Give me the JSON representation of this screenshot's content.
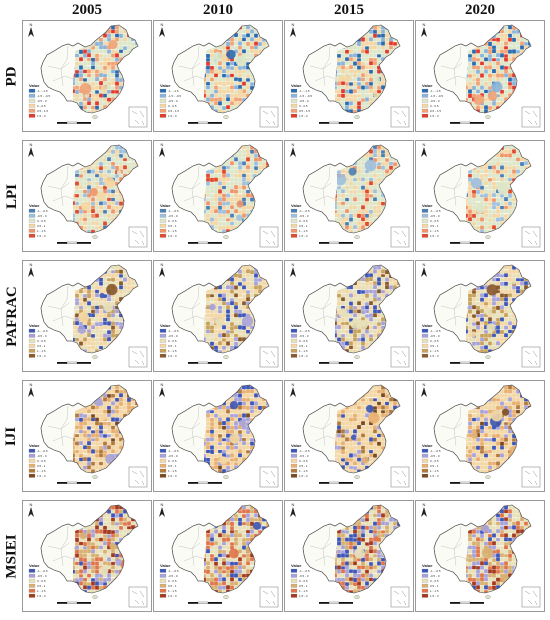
{
  "columns": [
    "2005",
    "2010",
    "2015",
    "2020"
  ],
  "rows": [
    {
      "label": "PD",
      "legend_title": "Value",
      "legend_classes": [
        {
          "text": "-1 - -1.5",
          "color": "#2b6cb0"
        },
        {
          "text": "-1.5 - -0.5",
          "color": "#8cb4d8"
        },
        {
          "text": "-0.5 - 0",
          "color": "#dde6c8"
        },
        {
          "text": "0 - 0.5",
          "color": "#f3d7a4"
        },
        {
          "text": "0.5 - 1.5",
          "color": "#f2a275"
        },
        {
          "text": "1.5 - 3",
          "color": "#e23b2e"
        }
      ],
      "years": [
        {
          "year": "2005",
          "class_levels": [
            0.05,
            0.15,
            0.35,
            0.2,
            0.15,
            0.1
          ]
        },
        {
          "year": "2010",
          "class_levels": [
            0.1,
            0.15,
            0.35,
            0.2,
            0.15,
            0.05
          ]
        },
        {
          "year": "2015",
          "class_levels": [
            0.08,
            0.12,
            0.38,
            0.2,
            0.12,
            0.1
          ]
        },
        {
          "year": "2020",
          "class_levels": [
            0.08,
            0.15,
            0.37,
            0.2,
            0.12,
            0.08
          ]
        }
      ]
    },
    {
      "label": "LPI",
      "legend_title": "Value",
      "legend_classes": [
        {
          "text": "-1 - -0.5",
          "color": "#4a7fb5"
        },
        {
          "text": "-0.5 - 0",
          "color": "#9fc0dd"
        },
        {
          "text": "0 - 0.5",
          "color": "#dde6c8"
        },
        {
          "text": "0.5 - 1",
          "color": "#f3d7a4"
        },
        {
          "text": "1 - 1.5",
          "color": "#f0946a"
        },
        {
          "text": "1.5 - 3",
          "color": "#e04a2e"
        }
      ],
      "years": [
        {
          "year": "2005",
          "class_levels": [
            0.05,
            0.1,
            0.45,
            0.25,
            0.1,
            0.05
          ]
        },
        {
          "year": "2010",
          "class_levels": [
            0.08,
            0.12,
            0.42,
            0.23,
            0.1,
            0.05
          ]
        },
        {
          "year": "2015",
          "class_levels": [
            0.05,
            0.1,
            0.45,
            0.25,
            0.1,
            0.05
          ]
        },
        {
          "year": "2020",
          "class_levels": [
            0.05,
            0.1,
            0.43,
            0.25,
            0.1,
            0.07
          ]
        }
      ]
    },
    {
      "label": "PAFRAC",
      "legend_title": "Value",
      "legend_classes": [
        {
          "text": "-1 - -0.5",
          "color": "#3d56b8"
        },
        {
          "text": "-0.5 - 0",
          "color": "#a7a3d8"
        },
        {
          "text": "0 - 0.5",
          "color": "#e7e0b8"
        },
        {
          "text": "0.5 - 1",
          "color": "#f3d7a4"
        },
        {
          "text": "1 - 1.5",
          "color": "#c7a25c"
        },
        {
          "text": "1.5 - 3",
          "color": "#8a5a2b"
        }
      ],
      "years": [
        {
          "year": "2005",
          "class_levels": [
            0.12,
            0.15,
            0.3,
            0.25,
            0.12,
            0.06
          ]
        },
        {
          "year": "2010",
          "class_levels": [
            0.1,
            0.15,
            0.32,
            0.25,
            0.12,
            0.06
          ]
        },
        {
          "year": "2015",
          "class_levels": [
            0.1,
            0.18,
            0.3,
            0.24,
            0.12,
            0.06
          ]
        },
        {
          "year": "2020",
          "class_levels": [
            0.1,
            0.15,
            0.32,
            0.25,
            0.12,
            0.06
          ]
        }
      ]
    },
    {
      "label": "IJI",
      "legend_title": "Value",
      "legend_classes": [
        {
          "text": "-1 - -0.5",
          "color": "#3d56b8"
        },
        {
          "text": "-0.5 - 0",
          "color": "#a7a3d8"
        },
        {
          "text": "0 - 0.5",
          "color": "#f3d7a4"
        },
        {
          "text": "0.5 - 1",
          "color": "#e8b070"
        },
        {
          "text": "1 - 1.5",
          "color": "#b37a3c"
        },
        {
          "text": "1.5 - 3",
          "color": "#7a4a20"
        }
      ],
      "years": [
        {
          "year": "2005",
          "class_levels": [
            0.08,
            0.12,
            0.45,
            0.2,
            0.1,
            0.05
          ]
        },
        {
          "year": "2010",
          "class_levels": [
            0.15,
            0.2,
            0.35,
            0.18,
            0.08,
            0.04
          ]
        },
        {
          "year": "2015",
          "class_levels": [
            0.06,
            0.1,
            0.5,
            0.2,
            0.1,
            0.04
          ]
        },
        {
          "year": "2020",
          "class_levels": [
            0.08,
            0.12,
            0.45,
            0.2,
            0.1,
            0.05
          ]
        }
      ]
    },
    {
      "label": "MSIEI",
      "legend_title": "Value",
      "legend_classes": [
        {
          "text": "-1 - -0.5",
          "color": "#3d56b8"
        },
        {
          "text": "-0.5 - 0",
          "color": "#a7a3d8"
        },
        {
          "text": "0 - 0.5",
          "color": "#e7e0b8"
        },
        {
          "text": "0.5 - 1",
          "color": "#d8b070"
        },
        {
          "text": "1 - 1.5",
          "color": "#e0744a"
        },
        {
          "text": "1.5 - 3",
          "color": "#a43a1e"
        }
      ],
      "years": [
        {
          "year": "2005",
          "class_levels": [
            0.1,
            0.15,
            0.3,
            0.2,
            0.15,
            0.1
          ]
        },
        {
          "year": "2010",
          "class_levels": [
            0.1,
            0.15,
            0.3,
            0.2,
            0.15,
            0.1
          ]
        },
        {
          "year": "2015",
          "class_levels": [
            0.12,
            0.18,
            0.3,
            0.2,
            0.12,
            0.08
          ]
        },
        {
          "year": "2020",
          "class_levels": [
            0.1,
            0.15,
            0.3,
            0.2,
            0.15,
            0.1
          ]
        }
      ]
    }
  ],
  "icons": {
    "north_arrow": "north-arrow-icon",
    "inset": "south-china-sea-inset"
  }
}
